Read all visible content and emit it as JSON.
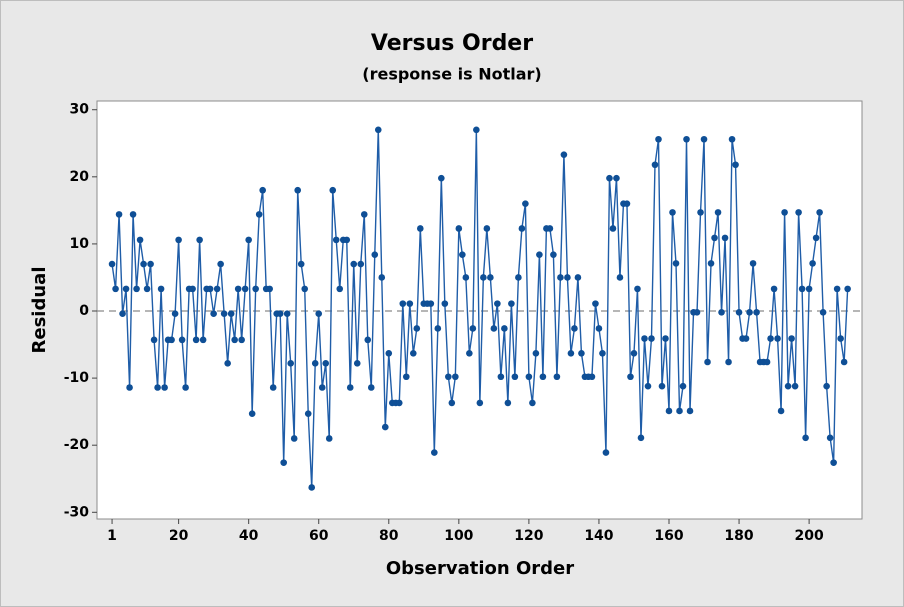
{
  "chart_data": {
    "type": "line",
    "title": "Versus Order",
    "subtitle": "(response is Notlar)",
    "xlabel": "Observation Order",
    "ylabel": "Residual",
    "color": "#1f5da8",
    "marker_color": "#0f4f96",
    "reference_line": 0,
    "grid": false,
    "xlim": [
      -3.3,
      215.1
    ],
    "ylim": [
      -31,
      31.3
    ],
    "xticks": [
      1,
      20,
      40,
      60,
      80,
      100,
      120,
      140,
      160,
      180,
      200
    ],
    "yticks": [
      -30,
      -20,
      -10,
      0,
      10,
      20,
      30
    ],
    "x": [
      1,
      2,
      3,
      4,
      5,
      6,
      7,
      8,
      9,
      10,
      11,
      12,
      13,
      14,
      15,
      16,
      17,
      18,
      19,
      20,
      21,
      22,
      23,
      24,
      25,
      26,
      27,
      28,
      29,
      30,
      31,
      32,
      33,
      34,
      35,
      36,
      37,
      38,
      39,
      40,
      41,
      42,
      43,
      44,
      45,
      46,
      47,
      48,
      49,
      50,
      51,
      52,
      53,
      54,
      55,
      56,
      57,
      58,
      59,
      60,
      61,
      62,
      63,
      64,
      65,
      66,
      67,
      68,
      69,
      70,
      71,
      72,
      73,
      74,
      75,
      76,
      77,
      78,
      79,
      80,
      81,
      82,
      83,
      84,
      85,
      86,
      87,
      88,
      89,
      90,
      91,
      92,
      93,
      94,
      95,
      96,
      97,
      98,
      99,
      100,
      101,
      102,
      103,
      104,
      105,
      106,
      107,
      108,
      109,
      110,
      111,
      112,
      113,
      114,
      115,
      116,
      117,
      118,
      119,
      120,
      121,
      122,
      123,
      124,
      125,
      126,
      127,
      128,
      129,
      130,
      131,
      132,
      133,
      134,
      135,
      136,
      137,
      138,
      139,
      140,
      141,
      142,
      143,
      144,
      145,
      146,
      147,
      148,
      149,
      150,
      151,
      152,
      153,
      154,
      155,
      156,
      157,
      158,
      159,
      160,
      161,
      162,
      163,
      164,
      165,
      166,
      167,
      168,
      169,
      170,
      171,
      172,
      173,
      174,
      175,
      176,
      177,
      178,
      179,
      180,
      181,
      182,
      183,
      184,
      185,
      186,
      187,
      188,
      189,
      190,
      191,
      192,
      193,
      194,
      195,
      196,
      197,
      198,
      199,
      200,
      201,
      202,
      203,
      204,
      205,
      206,
      207,
      208,
      209,
      210,
      211
    ],
    "values": [
      7,
      3.3,
      14.4,
      -0.4,
      3.3,
      -11.4,
      14.4,
      3.3,
      10.6,
      7,
      3.3,
      7,
      -4.3,
      -11.4,
      3.3,
      -11.4,
      -4.3,
      -4.3,
      -0.4,
      10.6,
      -4.3,
      -11.4,
      3.3,
      3.3,
      -4.3,
      10.6,
      -4.3,
      3.3,
      3.3,
      -0.4,
      3.3,
      7,
      -0.4,
      -7.8,
      -0.4,
      -4.3,
      3.3,
      -4.3,
      3.3,
      10.6,
      -15.3,
      3.3,
      14.4,
      18,
      3.3,
      3.3,
      -11.4,
      -0.4,
      -0.4,
      -22.6,
      -0.4,
      -7.8,
      -19,
      18,
      7,
      3.3,
      -15.3,
      -26.3,
      -7.8,
      -0.4,
      -11.4,
      -7.8,
      -19,
      18,
      10.6,
      3.3,
      10.6,
      10.6,
      -11.4,
      7,
      -7.8,
      7,
      14.4,
      -4.3,
      -11.4,
      8.4,
      27,
      5,
      -17.3,
      -6.3,
      -13.7,
      -13.7,
      -13.7,
      1.1,
      -9.8,
      1.1,
      -6.3,
      -2.6,
      12.3,
      1.1,
      1.1,
      1.1,
      -21.1,
      -2.6,
      19.8,
      1.1,
      -9.8,
      -13.7,
      -9.8,
      12.3,
      8.4,
      5,
      -6.3,
      -2.6,
      27,
      -13.7,
      5,
      12.3,
      5,
      -2.6,
      1.1,
      -9.8,
      -2.6,
      -13.7,
      1.1,
      -9.8,
      5,
      12.3,
      16,
      -9.8,
      -13.7,
      -6.3,
      8.4,
      -9.8,
      12.3,
      12.3,
      8.4,
      -9.8,
      5,
      23.3,
      5,
      -6.3,
      -2.6,
      5,
      -6.3,
      -9.8,
      -9.8,
      -9.8,
      1.1,
      -2.6,
      -6.3,
      -21.1,
      19.8,
      12.3,
      19.8,
      5,
      16,
      16,
      -9.8,
      -6.3,
      3.3,
      -18.9,
      -4.1,
      -11.2,
      -4.1,
      21.8,
      25.6,
      -11.2,
      -4.1,
      -14.9,
      14.7,
      7.1,
      -14.9,
      -11.2,
      25.6,
      -14.9,
      -0.2,
      -0.2,
      14.7,
      25.6,
      -7.6,
      7.1,
      10.9,
      14.7,
      -0.2,
      10.9,
      -7.6,
      25.6,
      21.8,
      -0.2,
      -4.1,
      -4.1,
      -0.2,
      7.1,
      -0.2,
      -7.6,
      -7.6,
      -7.6,
      -4.1,
      3.3,
      -4.1,
      -14.9,
      14.7,
      -11.2,
      -4.1,
      -11.2,
      14.7,
      3.3,
      -18.9,
      3.3,
      7.1,
      10.9,
      14.7,
      -0.2,
      -11.2,
      -18.9,
      -22.6,
      3.3,
      -4.1,
      -7.6,
      3.3
    ]
  }
}
